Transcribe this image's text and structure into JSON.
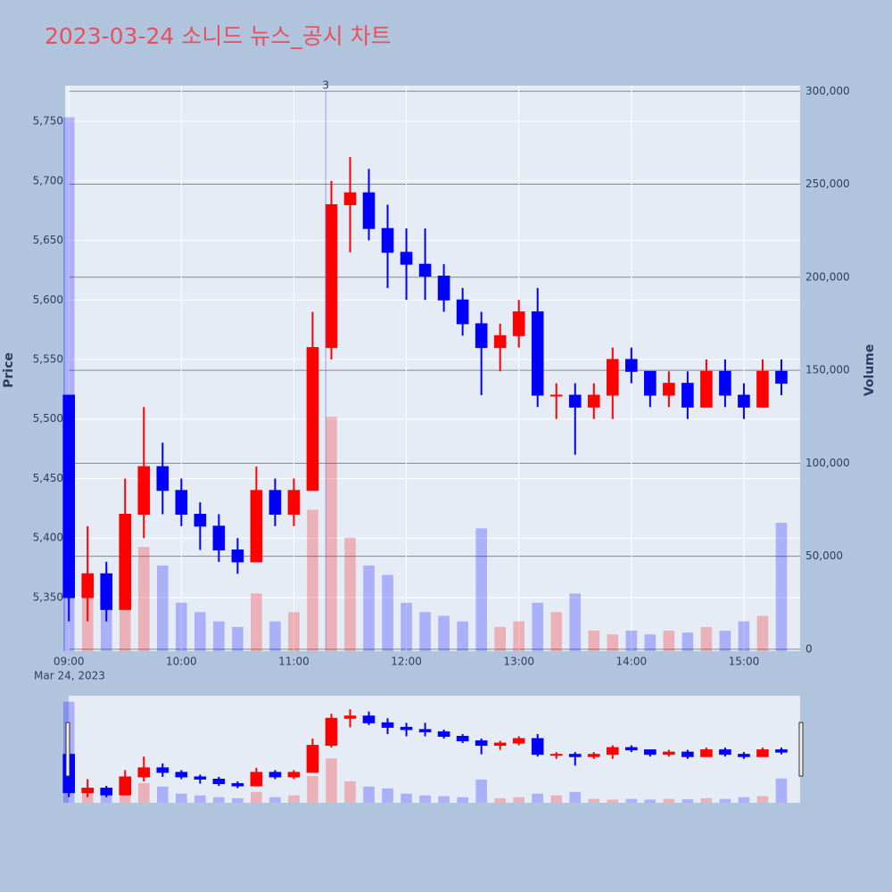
{
  "chart_data": {
    "type": "candlestick",
    "title": "2023-03-24 소니드 뉴스_공시 차트",
    "y_title": "Price",
    "y2_title": "Volume",
    "x_date_label": "Mar 24, 2023",
    "x": [
      "09:00",
      "09:10",
      "09:20",
      "09:30",
      "09:40",
      "09:50",
      "10:00",
      "10:10",
      "10:20",
      "10:30",
      "10:40",
      "10:50",
      "11:00",
      "11:10",
      "11:20",
      "11:30",
      "11:40",
      "11:50",
      "12:00",
      "12:10",
      "12:20",
      "12:30",
      "12:40",
      "12:50",
      "13:00",
      "13:10",
      "13:20",
      "13:30",
      "13:40",
      "13:50",
      "14:00",
      "14:10",
      "14:20",
      "14:30",
      "14:40",
      "14:50",
      "15:00",
      "15:10",
      "15:20"
    ],
    "open": [
      5520,
      5350,
      5370,
      5340,
      5420,
      5460,
      5440,
      5420,
      5410,
      5390,
      5380,
      5440,
      5420,
      5440,
      5560,
      5680,
      5690,
      5660,
      5640,
      5630,
      5620,
      5600,
      5580,
      5560,
      5570,
      5590,
      5520,
      5520,
      5510,
      5520,
      5550,
      5540,
      5520,
      5530,
      5510,
      5540,
      5520,
      5510,
      5540
    ],
    "high": [
      5520,
      5410,
      5380,
      5450,
      5510,
      5480,
      5450,
      5430,
      5420,
      5400,
      5460,
      5450,
      5450,
      5590,
      5700,
      5720,
      5710,
      5680,
      5660,
      5660,
      5630,
      5610,
      5590,
      5580,
      5600,
      5610,
      5530,
      5530,
      5530,
      5560,
      5560,
      5540,
      5540,
      5540,
      5550,
      5550,
      5530,
      5550,
      5550
    ],
    "low": [
      5330,
      5330,
      5330,
      5340,
      5400,
      5420,
      5410,
      5390,
      5380,
      5370,
      5380,
      5410,
      5410,
      5440,
      5550,
      5640,
      5650,
      5610,
      5600,
      5600,
      5590,
      5570,
      5520,
      5540,
      5560,
      5510,
      5500,
      5470,
      5500,
      5500,
      5530,
      5510,
      5510,
      5500,
      5510,
      5510,
      5500,
      5510,
      5520
    ],
    "close": [
      5350,
      5370,
      5340,
      5420,
      5460,
      5440,
      5420,
      5410,
      5390,
      5380,
      5440,
      5420,
      5440,
      5560,
      5680,
      5690,
      5660,
      5640,
      5630,
      5620,
      5600,
      5580,
      5560,
      5570,
      5590,
      5520,
      5520,
      5510,
      5520,
      5550,
      5540,
      5520,
      5530,
      5510,
      5540,
      5520,
      5510,
      5540,
      5530
    ],
    "volume": [
      286000,
      40000,
      30000,
      60000,
      55000,
      45000,
      25000,
      20000,
      15000,
      12000,
      30000,
      15000,
      20000,
      75000,
      125000,
      60000,
      45000,
      40000,
      25000,
      20000,
      18000,
      15000,
      65000,
      12000,
      15000,
      25000,
      20000,
      30000,
      10000,
      8000,
      10000,
      8000,
      10000,
      9000,
      12000,
      10000,
      15000,
      18000,
      68000
    ],
    "increasing_color": "#ff0000",
    "decreasing_color": "#0000ff",
    "ylim": [
      5305,
      5780
    ],
    "yticks": [
      {
        "value": 5350,
        "label": "5,350"
      },
      {
        "value": 5400,
        "label": "5,400"
      },
      {
        "value": 5450,
        "label": "5,450"
      },
      {
        "value": 5500,
        "label": "5,500"
      },
      {
        "value": 5550,
        "label": "5,550"
      },
      {
        "value": 5600,
        "label": "5,600"
      },
      {
        "value": 5650,
        "label": "5,650"
      },
      {
        "value": 5700,
        "label": "5,700"
      },
      {
        "value": 5750,
        "label": "5,750"
      }
    ],
    "y2lim": [
      -1000,
      303000
    ],
    "y2ticks": [
      0,
      {
        "value": 50000,
        "label": "50,000"
      },
      {
        "value": 100000,
        "label": "100,000"
      },
      {
        "value": 150000,
        "label": "150,000"
      },
      {
        "value": 200000,
        "label": "200,000"
      },
      {
        "value": 250000,
        "label": "250,000"
      },
      {
        "value": 300000,
        "label": "300,000"
      }
    ],
    "xlim": [
      "08:58",
      "15:30"
    ],
    "xticks": [
      "09:00",
      "10:00",
      "11:00",
      "12:00",
      "13:00",
      "14:00",
      "15:00"
    ],
    "annotation": {
      "x": "11:17",
      "text": "3"
    },
    "rangeslider": true
  }
}
